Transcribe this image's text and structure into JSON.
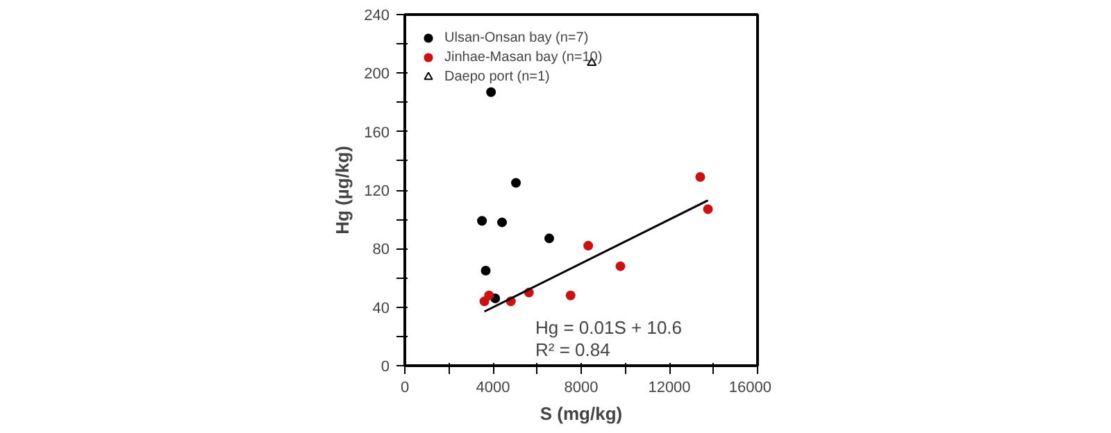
{
  "chart_data": {
    "type": "scatter",
    "xlabel": "S (mg/kg)",
    "ylabel": "Hg (µg/kg)",
    "xlim": [
      0,
      16000
    ],
    "ylim": [
      0,
      240
    ],
    "xticks": [
      0,
      {
        "value": 2000,
        "label": null
      },
      4000,
      {
        "value": 6000,
        "label": null
      },
      8000,
      {
        "value": 10000,
        "label": null
      },
      12000,
      {
        "value": 14000,
        "label": null
      },
      16000
    ],
    "yticks": [
      0,
      {
        "value": 20,
        "label": null
      },
      40,
      {
        "value": 60,
        "label": null
      },
      80,
      {
        "value": 100,
        "label": null
      },
      120,
      {
        "value": 140,
        "label": null
      },
      160,
      {
        "value": 180,
        "label": null
      },
      200,
      {
        "value": 220,
        "label": null
      },
      240
    ],
    "grid": false,
    "legend": "top left",
    "series": [
      {
        "name": "Ulsan-Onsan bay (n=7)",
        "color": "#000000",
        "marker": "circle",
        "x": [
          3500,
          3670,
          4410,
          4100,
          6550,
          3910,
          5040
        ],
        "values": [
          99,
          65,
          98,
          46,
          87,
          187,
          125
        ]
      },
      {
        "name": "Jinhae-Masan bay (n=10)",
        "color": "#cc1111",
        "marker": "circle",
        "x": [
          3610,
          3820,
          4810,
          5630,
          7520,
          8320,
          9780,
          13750,
          13400
        ],
        "values": [
          44,
          48,
          44,
          50,
          48,
          82,
          68,
          107,
          129
        ]
      },
      {
        "name": "Daepo port (n=1)",
        "color": "#000000",
        "marker": "triangle",
        "x": [
          8480
        ],
        "values": [
          207
        ]
      },
      {
        "type": "line",
        "color": "#000000",
        "marker": "none",
        "x": [
          3610,
          13750
        ],
        "values": [
          37,
          113
        ]
      }
    ],
    "annotations": [
      "Hg = 0.01S + 10.6",
      "R² = 0.84"
    ]
  }
}
